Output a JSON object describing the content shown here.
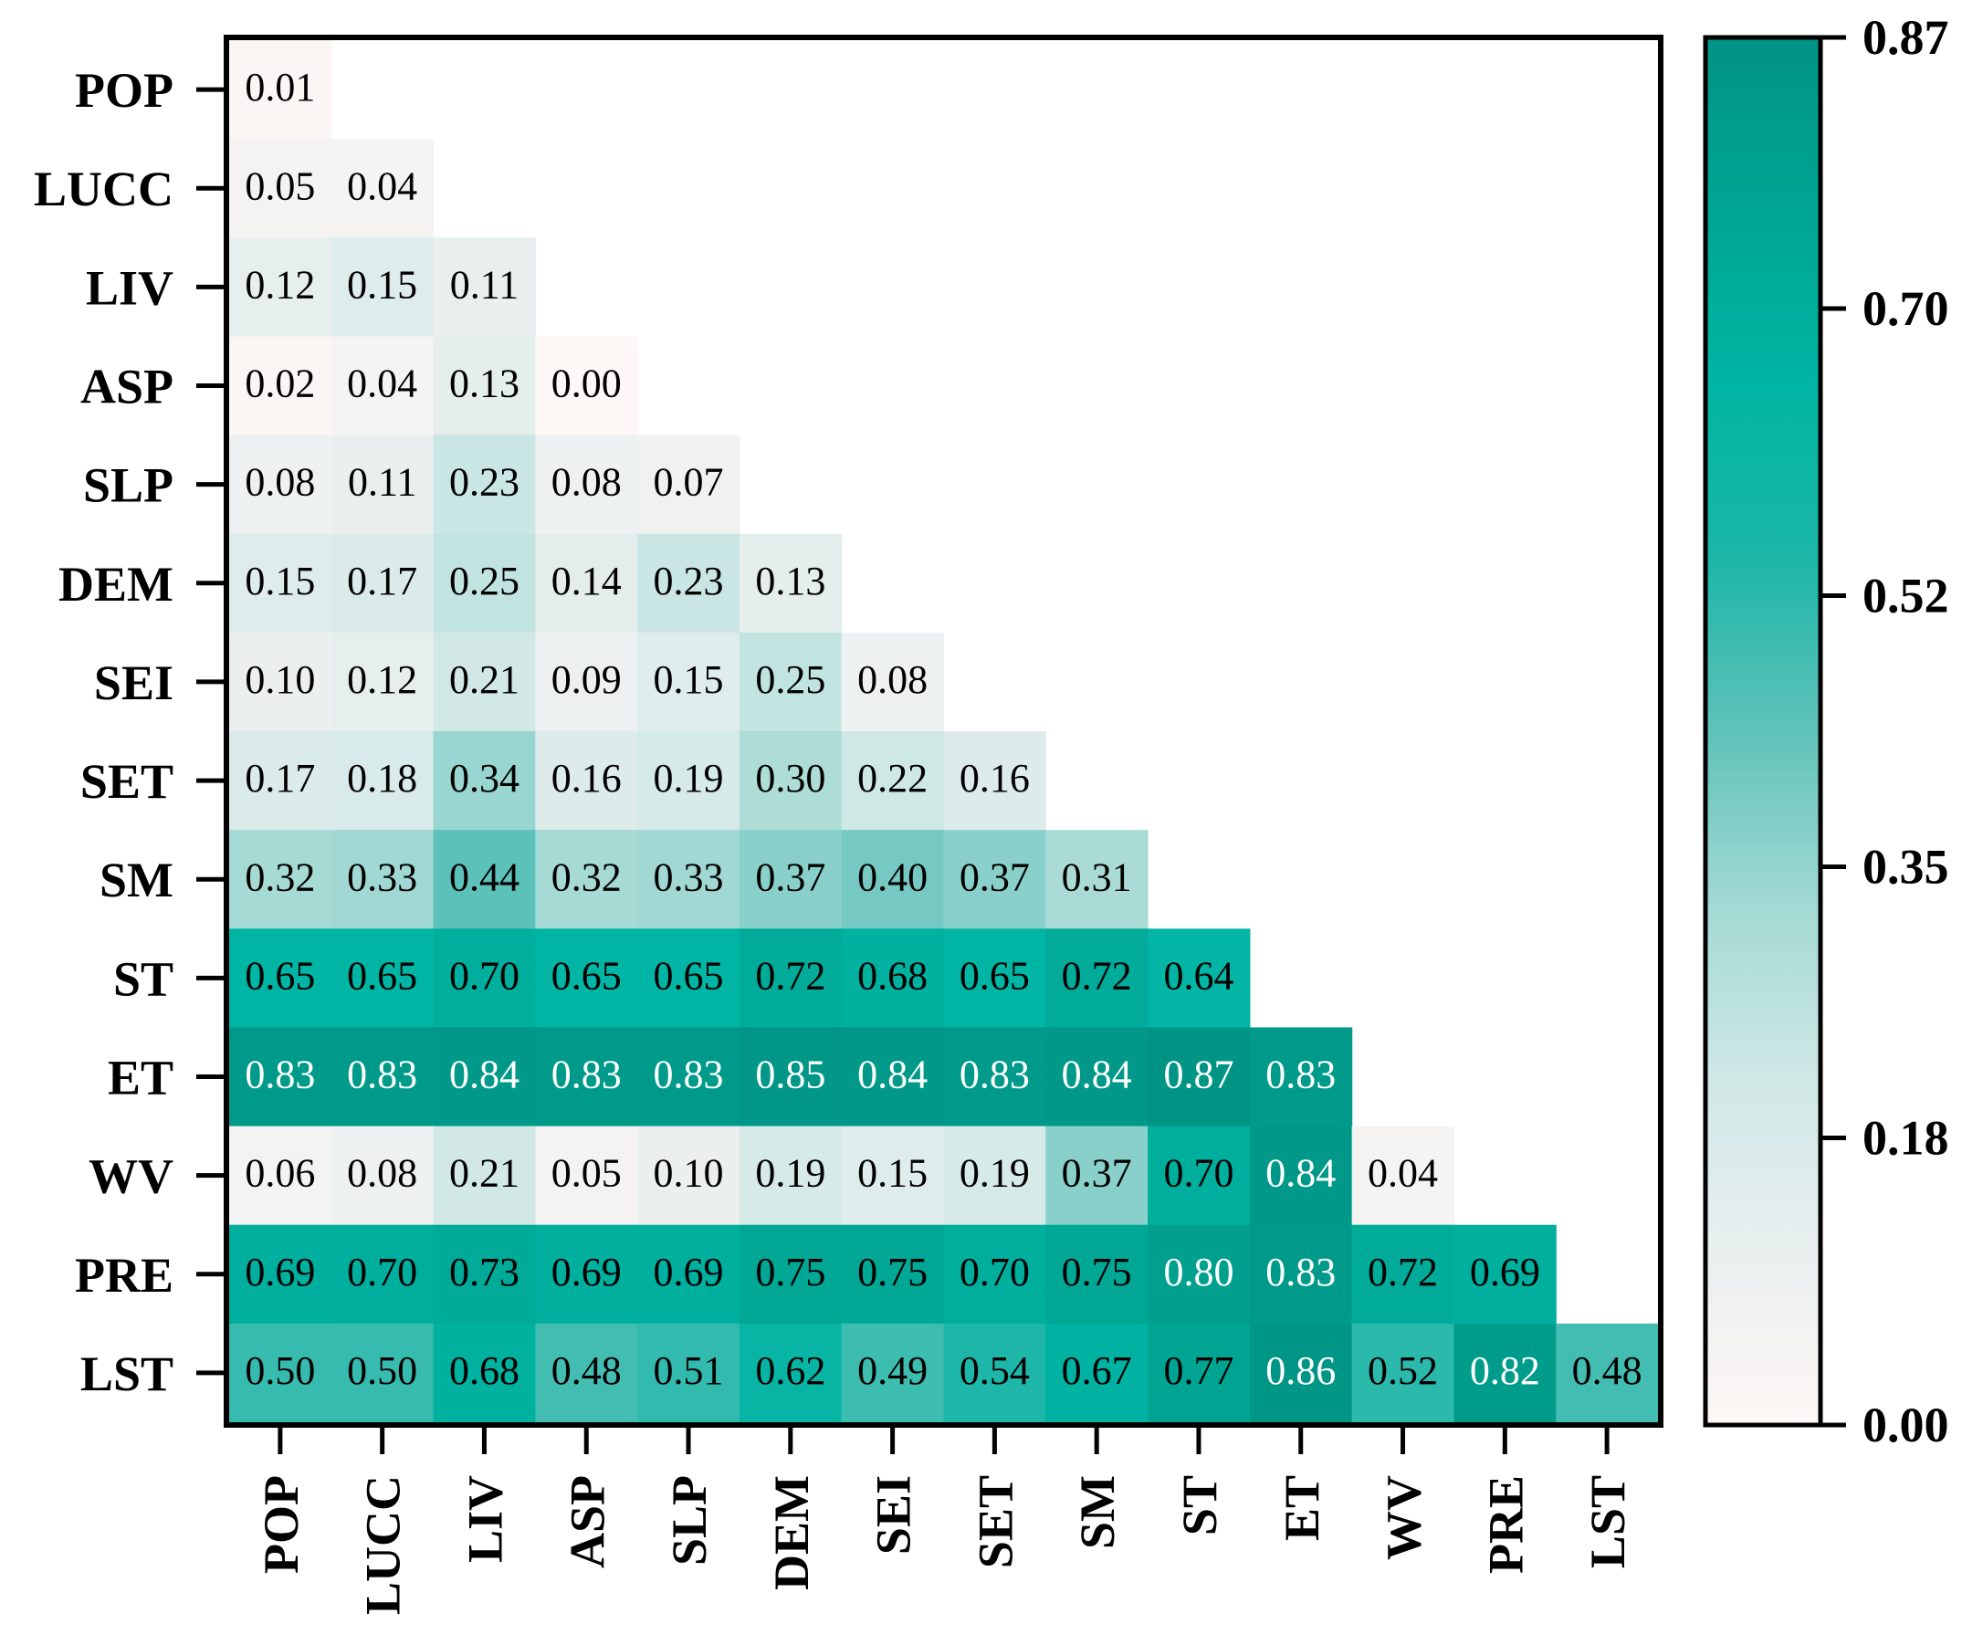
{
  "chart_data": {
    "type": "heatmap",
    "title": "",
    "xlabel": "",
    "ylabel": "",
    "shape": "lower-triangular",
    "variables": [
      "POP",
      "LUCC",
      "LIV",
      "ASP",
      "SLP",
      "DEM",
      "SEI",
      "SET",
      "SM",
      "ST",
      "ET",
      "WV",
      "PRE",
      "LST"
    ],
    "values": [
      [
        0.01
      ],
      [
        0.05,
        0.04
      ],
      [
        0.12,
        0.15,
        0.11
      ],
      [
        0.02,
        0.04,
        0.13,
        0.0
      ],
      [
        0.08,
        0.11,
        0.23,
        0.08,
        0.07
      ],
      [
        0.15,
        0.17,
        0.25,
        0.14,
        0.23,
        0.13
      ],
      [
        0.1,
        0.12,
        0.21,
        0.09,
        0.15,
        0.25,
        0.08
      ],
      [
        0.17,
        0.18,
        0.34,
        0.16,
        0.19,
        0.3,
        0.22,
        0.16
      ],
      [
        0.32,
        0.33,
        0.44,
        0.32,
        0.33,
        0.37,
        0.4,
        0.37,
        0.31
      ],
      [
        0.65,
        0.65,
        0.7,
        0.65,
        0.65,
        0.72,
        0.68,
        0.65,
        0.72,
        0.64
      ],
      [
        0.83,
        0.83,
        0.84,
        0.83,
        0.83,
        0.85,
        0.84,
        0.83,
        0.84,
        0.87,
        0.83
      ],
      [
        0.06,
        0.08,
        0.21,
        0.05,
        0.1,
        0.19,
        0.15,
        0.19,
        0.37,
        0.7,
        0.84,
        0.04
      ],
      [
        0.69,
        0.7,
        0.73,
        0.69,
        0.69,
        0.75,
        0.75,
        0.7,
        0.75,
        0.8,
        0.83,
        0.72,
        0.69
      ],
      [
        0.5,
        0.5,
        0.68,
        0.48,
        0.51,
        0.62,
        0.49,
        0.54,
        0.67,
        0.77,
        0.86,
        0.52,
        0.82,
        0.48
      ]
    ],
    "colorbar": {
      "min": 0.0,
      "max": 0.87,
      "ticks": [
        "0.87",
        "0.70",
        "0.52",
        "0.35",
        "0.18",
        "0.00"
      ],
      "colors": [
        "#fdf7f5",
        "#e9efef",
        "#cfe8e6",
        "#a3d9d4",
        "#5fc2b9",
        "#1cb6a7",
        "#00b5a4",
        "#00a593",
        "#009485"
      ]
    },
    "label_color_light_above": 0.8
  }
}
